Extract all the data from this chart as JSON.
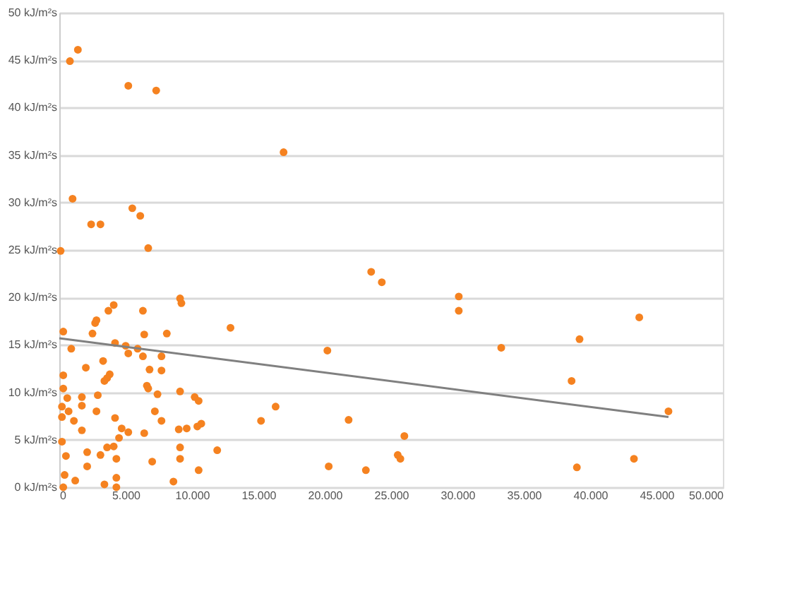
{
  "chart_data": {
    "type": "scatter",
    "grid": "y",
    "xlim": [
      0,
      50000
    ],
    "ylim": [
      0,
      50
    ],
    "xticks": [
      0,
      {
        "value": 5000,
        "label": "5.000"
      },
      {
        "value": 10000,
        "label": "10.000"
      },
      {
        "value": 15000,
        "label": "15.000"
      },
      {
        "value": 20000,
        "label": "20.000"
      },
      {
        "value": 25000,
        "label": "25.000"
      },
      {
        "value": 30000,
        "label": "30.000"
      },
      {
        "value": 35000,
        "label": "35.000"
      },
      {
        "value": 40000,
        "label": "40.000"
      },
      {
        "value": 45000,
        "label": "45.000"
      },
      {
        "value": 50000,
        "label": "50.000"
      }
    ],
    "yticks": [
      {
        "value": 0,
        "label": "0 kJ/m²s"
      },
      {
        "value": 5,
        "label": "5 kJ/m²s"
      },
      {
        "value": 10,
        "label": "10 kJ/m²s"
      },
      {
        "value": 15,
        "label": "15 kJ/m²s"
      },
      {
        "value": 20,
        "label": "20 kJ/m²s"
      },
      {
        "value": 25,
        "label": "25 kJ/m²s"
      },
      {
        "value": 30,
        "label": "30 kJ/m²s"
      },
      {
        "value": 35,
        "label": "35 kJ/m²s"
      },
      {
        "value": 40,
        "label": "40 kJ/m²s"
      },
      {
        "value": 45,
        "label": "45 kJ/m²s"
      },
      {
        "value": 50,
        "label": "50 kJ/m²s"
      }
    ],
    "series": [
      {
        "type": "scatter",
        "marker": "circle",
        "color": "#f58220",
        "x": [
          800,
          1400,
          5200,
          7300,
          16900,
          1000,
          2400,
          3100,
          5500,
          6100,
          100,
          6700,
          23500,
          24300,
          30100,
          30100,
          9100,
          9200,
          300,
          2500,
          2700,
          2800,
          3700,
          4100,
          6300,
          6400,
          8100,
          12900,
          900,
          4200,
          5000,
          5200,
          5900,
          6300,
          7700,
          7700,
          3300,
          2000,
          3800,
          3600,
          3400,
          6800,
          300,
          300,
          6600,
          6700,
          7400,
          9100,
          10200,
          10500,
          600,
          1700,
          2900,
          1700,
          2800,
          7200,
          7700,
          200,
          200,
          700,
          1100,
          1700,
          4200,
          4700,
          5200,
          4500,
          4100,
          6400,
          9000,
          9600,
          10400,
          10700,
          200,
          500,
          2100,
          3600,
          3100,
          4300,
          9100,
          9100,
          7000,
          11900,
          10500,
          400,
          1200,
          2100,
          3400,
          4300,
          4300,
          300,
          8600,
          20200,
          33300,
          39200,
          38600,
          43700,
          45900,
          15200,
          16300,
          21800,
          26000,
          25500,
          25700,
          20300,
          23100,
          39000,
          43300
        ],
        "values": [
          44.9,
          46.1,
          42.3,
          41.8,
          35.3,
          30.4,
          27.7,
          27.7,
          29.4,
          28.6,
          24.9,
          25.2,
          22.7,
          21.6,
          20.1,
          18.6,
          19.9,
          19.4,
          16.4,
          16.2,
          17.3,
          17.6,
          18.6,
          19.2,
          18.6,
          16.1,
          16.2,
          16.8,
          14.6,
          15.2,
          14.9,
          14.1,
          14.6,
          13.8,
          13.8,
          12.3,
          13.3,
          12.6,
          11.9,
          11.5,
          11.2,
          12.4,
          11.8,
          10.4,
          10.7,
          10.4,
          9.8,
          10.1,
          9.5,
          9.1,
          9.4,
          9.5,
          9.7,
          8.6,
          8.0,
          8.0,
          7.0,
          8.5,
          7.4,
          8.0,
          7.0,
          6.0,
          7.3,
          6.2,
          5.8,
          5.2,
          4.3,
          5.7,
          6.1,
          6.2,
          6.4,
          6.7,
          4.8,
          3.3,
          3.7,
          4.2,
          3.4,
          3.0,
          4.2,
          3.0,
          2.7,
          3.9,
          1.8,
          1.3,
          0.7,
          2.2,
          0.3,
          0.0,
          1.0,
          0.0,
          0.6,
          14.4,
          14.7,
          15.6,
          11.2,
          17.9,
          8.0,
          7.0,
          8.5,
          7.1,
          5.4,
          3.4,
          3.0,
          2.2,
          1.8,
          2.1,
          3.0
        ]
      },
      {
        "type": "line",
        "color": "#808080",
        "x": [
          0,
          45900
        ],
        "values": [
          15.7,
          7.4
        ]
      }
    ]
  }
}
